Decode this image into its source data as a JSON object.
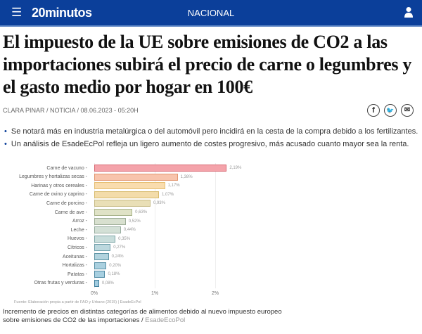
{
  "header": {
    "brand": "20minutos",
    "section": "NACIONAL"
  },
  "article": {
    "title": "El impuesto de la UE sobre emisiones de CO2 a las importaciones subirá el precio de carne o legumbres y el gasto medio por hogar en 100€",
    "meta": "CLARA PINAR / NOTICIA / 08.06.2023 - 05:20H",
    "bullets": [
      "Se notará más en industria metalúrgica o del automóvil pero incidirá en la cesta de la compra debido a los fertilizantes.",
      "Un análisis de EsadeEcPol refleja un ligero aumento de costes progresivo, más acusado cuanto mayor sea la renta."
    ],
    "source": "Fuente: Elaboración propia a partir de FAO y Urbano (2015) | EsadeEcPol",
    "caption": "Incremento de precios en distintas categorías de alimentos debido al nuevo impuesto europeo sobre emisiones de CO2 de las importaciones",
    "credit": "EsadeEcoPol"
  },
  "chart_data": {
    "type": "bar",
    "orientation": "horizontal",
    "categories": [
      "Carne de vacuno",
      "Legumbres y hortalizas secas",
      "Harinas y otros cereales",
      "Carne de ovino y caprino",
      "Carne de porcino",
      "Carne de ave",
      "Arroz",
      "Leche",
      "Huevos",
      "Cítricos",
      "Aceitunas",
      "Hortalizas",
      "Patatas",
      "Otras frutas y verduras"
    ],
    "values": [
      2.19,
      1.38,
      1.17,
      1.07,
      0.93,
      0.63,
      0.52,
      0.44,
      0.35,
      0.27,
      0.24,
      0.2,
      0.18,
      0.08
    ],
    "labels": [
      "2,19%",
      "1,38%",
      "1,17%",
      "1,07%",
      "0,93%",
      "0,63%",
      "0,52%",
      "0,44%",
      "0,35%",
      "0,27%",
      "0,24%",
      "0,20%",
      "0,18%",
      "0,08%"
    ],
    "xticks": [
      "0%",
      "1%",
      "2%"
    ],
    "xlim": [
      0,
      2.5
    ],
    "colors": [
      "#f4a3aa",
      "#f8c4ac",
      "#f9dcae",
      "#f3dcaa",
      "#e9dfb6",
      "#dfe2c6",
      "#d8e0cf",
      "#d3e0d6",
      "#c8dddb",
      "#bcd8de",
      "#b2d3de",
      "#aad0df",
      "#a7cfe0",
      "#a2cce0"
    ],
    "borders": [
      "#d96a74",
      "#e2966f",
      "#e6bf73",
      "#d8bb6e",
      "#c7bb86",
      "#a9b48b",
      "#9eae98",
      "#98ad9f",
      "#7fa7a7",
      "#6f9faa",
      "#5f95a6",
      "#5790a6",
      "#4f8aa3",
      "#3f7f9c"
    ]
  }
}
